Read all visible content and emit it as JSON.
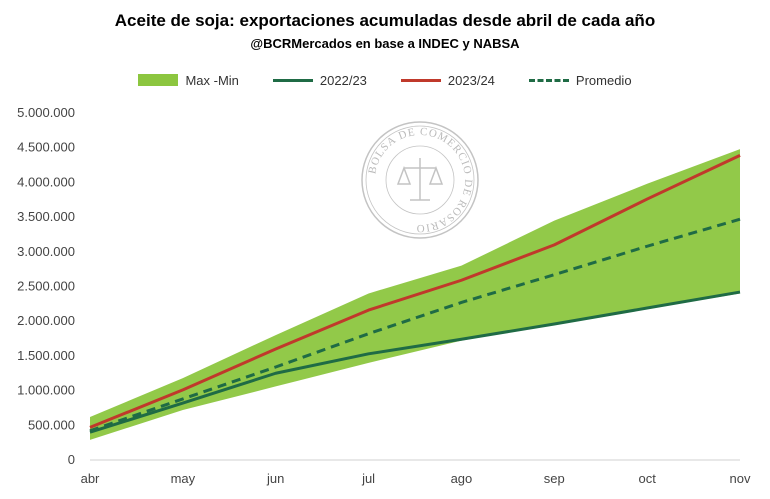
{
  "chart_data": {
    "type": "line",
    "title": "Aceite de soja: exportaciones acumuladas desde abril de cada año",
    "subtitle": "@BCRMercados en base a INDEC y NABSA",
    "x": [
      "abr",
      "may",
      "jun",
      "jul",
      "ago",
      "sep",
      "oct",
      "nov"
    ],
    "ylim": [
      0,
      5000000
    ],
    "yticks": [
      0,
      500000,
      1000000,
      1500000,
      2000000,
      2500000,
      3000000,
      3500000,
      4000000,
      4500000,
      5000000
    ],
    "ytick_labels": [
      "0",
      "500.000",
      "1.000.000",
      "1.500.000",
      "2.000.000",
      "2.500.000",
      "3.000.000",
      "3.500.000",
      "4.000.000",
      "4.500.000",
      "5.000.000"
    ],
    "grid": false,
    "legend_position": "top",
    "series": [
      {
        "name": "Max -Min",
        "kind": "band",
        "color": "#8cc63f",
        "max": [
          620000,
          1180000,
          1800000,
          2400000,
          2800000,
          3450000,
          3980000,
          4480000
        ],
        "min": [
          290000,
          720000,
          1060000,
          1400000,
          1720000,
          1960000,
          2180000,
          2400000
        ]
      },
      {
        "name": "2022/23",
        "kind": "line",
        "color": "#1f6b45",
        "values": [
          400000,
          820000,
          1250000,
          1530000,
          1740000,
          1960000,
          2190000,
          2420000
        ]
      },
      {
        "name": "2023/24",
        "kind": "line",
        "color": "#c0392b",
        "values": [
          470000,
          1010000,
          1600000,
          2160000,
          2590000,
          3100000,
          3760000,
          4390000
        ]
      },
      {
        "name": "Promedio",
        "kind": "dashed",
        "color": "#1f6b45",
        "values": [
          420000,
          880000,
          1340000,
          1820000,
          2270000,
          2670000,
          3080000,
          3470000
        ]
      }
    ]
  },
  "watermark": {
    "text": "BOLSA DE COMERCIO DE ROSARIO"
  }
}
